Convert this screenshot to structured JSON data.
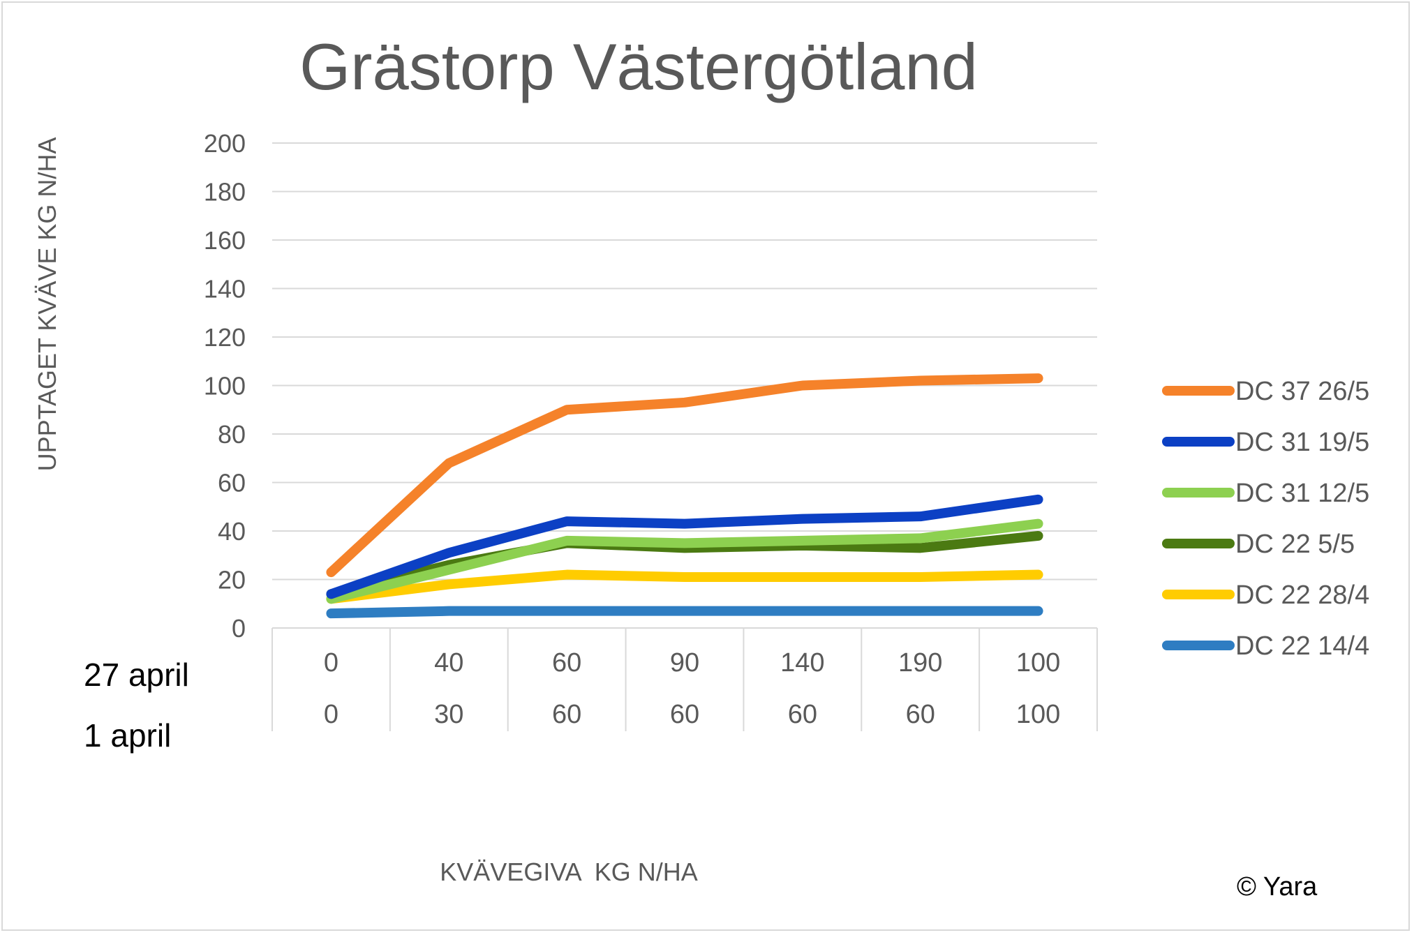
{
  "chart_data": {
    "type": "line",
    "title": "Grästorp Västergötland",
    "ylabel": "UPPTAGET KVÄVE KG N/HA",
    "xlabel": "KVÄVEGIVA  KG N/HA",
    "ylim": [
      0,
      200
    ],
    "yticks": [
      0,
      20,
      40,
      60,
      80,
      100,
      120,
      140,
      160,
      180,
      200
    ],
    "categories_row1": [
      "0",
      "40",
      "60",
      "90",
      "140",
      "190",
      "100"
    ],
    "categories_row2": [
      "0",
      "30",
      "60",
      "60",
      "60",
      "60",
      "100"
    ],
    "row_labels": [
      "27 april",
      "1 april"
    ],
    "grid": true,
    "legend_position": "right",
    "series": [
      {
        "name": "DC 37 26/5",
        "color": "#f5822a",
        "values": [
          23,
          68,
          90,
          93,
          100,
          102,
          103
        ]
      },
      {
        "name": "DC 31 19/5",
        "color": "#0c40c4",
        "values": [
          14,
          31,
          44,
          43,
          45,
          46,
          53
        ]
      },
      {
        "name": "DC 31 12/5",
        "color": "#8dd050",
        "values": [
          12,
          24,
          36,
          35,
          36,
          37,
          43
        ]
      },
      {
        "name": "DC 22 5/5",
        "color": "#4b7a12",
        "values": [
          14,
          26,
          35,
          33,
          34,
          33,
          38
        ]
      },
      {
        "name": "DC 22 28/4",
        "color": "#ffcc00",
        "values": [
          12,
          18,
          22,
          21,
          21,
          21,
          22
        ]
      },
      {
        "name": "DC 22 14/4",
        "color": "#2e7dc2",
        "values": [
          6,
          7,
          7,
          7,
          7,
          7,
          7
        ]
      }
    ]
  },
  "footer": {
    "copyright": "© Yara"
  }
}
